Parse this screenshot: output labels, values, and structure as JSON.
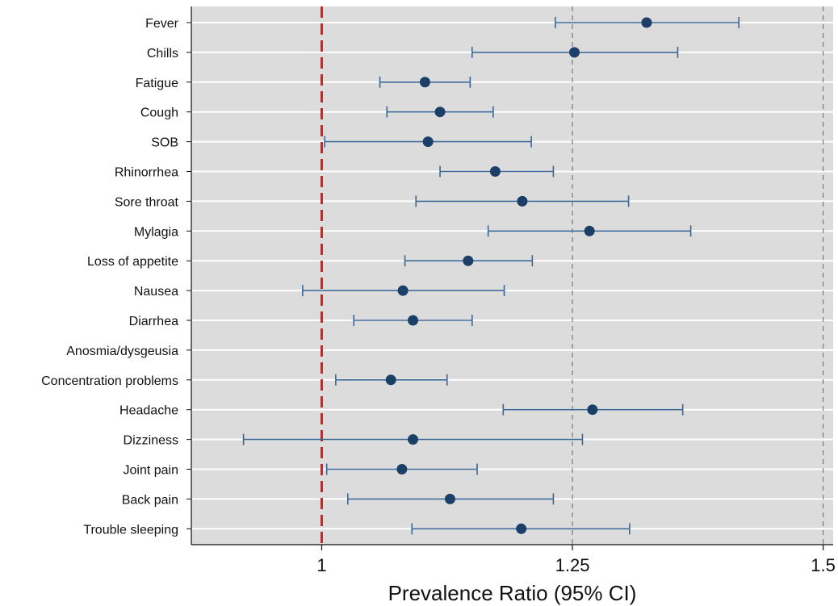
{
  "chart_data": {
    "type": "scatter",
    "xlabel": "Prevalence Ratio (95% CI)",
    "xlim": [
      0.87,
      1.51
    ],
    "xticks": [
      {
        "value": 1,
        "label": "1"
      },
      {
        "value": 1.25,
        "label": "1.25"
      },
      {
        "value": 1.5,
        "label": "1.5"
      }
    ],
    "reference_line": {
      "value": 1,
      "color": "#e8191b",
      "style": "dashed"
    },
    "dashed_gridlines": [
      1.25,
      1.5
    ],
    "grid": true,
    "colors": {
      "plot_bg": "#dcdcdc",
      "marker": "#1b3f66",
      "whisker": "#3a6796"
    },
    "points": [
      {
        "label": "Fever",
        "estimate": 1.324,
        "lower": 1.233,
        "upper": 1.416
      },
      {
        "label": "Chills",
        "estimate": 1.252,
        "lower": 1.15,
        "upper": 1.355
      },
      {
        "label": "Fatigue",
        "estimate": 1.103,
        "lower": 1.058,
        "upper": 1.148
      },
      {
        "label": "Cough",
        "estimate": 1.118,
        "lower": 1.065,
        "upper": 1.171
      },
      {
        "label": "SOB",
        "estimate": 1.106,
        "lower": 1.003,
        "upper": 1.209
      },
      {
        "label": "Rhinorrhea",
        "estimate": 1.173,
        "lower": 1.118,
        "upper": 1.231
      },
      {
        "label": "Sore throat",
        "estimate": 1.2,
        "lower": 1.094,
        "upper": 1.306
      },
      {
        "label": "Mylagia",
        "estimate": 1.267,
        "lower": 1.166,
        "upper": 1.368
      },
      {
        "label": "Loss of appetite",
        "estimate": 1.146,
        "lower": 1.083,
        "upper": 1.21
      },
      {
        "label": "Nausea",
        "estimate": 1.081,
        "lower": 0.981,
        "upper": 1.182
      },
      {
        "label": "Diarrhea",
        "estimate": 1.091,
        "lower": 1.032,
        "upper": 1.15
      },
      {
        "label": "Anosmia/dysgeusia",
        "estimate": null,
        "lower": null,
        "upper": null
      },
      {
        "label": "Concentration problems",
        "estimate": 1.069,
        "lower": 1.014,
        "upper": 1.125
      },
      {
        "label": "Headache",
        "estimate": 1.27,
        "lower": 1.181,
        "upper": 1.36
      },
      {
        "label": "Dizziness",
        "estimate": 1.091,
        "lower": 0.922,
        "upper": 1.26
      },
      {
        "label": "Joint pain",
        "estimate": 1.08,
        "lower": 1.005,
        "upper": 1.155
      },
      {
        "label": "Back pain",
        "estimate": 1.128,
        "lower": 1.026,
        "upper": 1.231
      },
      {
        "label": "Trouble sleeping",
        "estimate": 1.199,
        "lower": 1.09,
        "upper": 1.307
      }
    ]
  }
}
